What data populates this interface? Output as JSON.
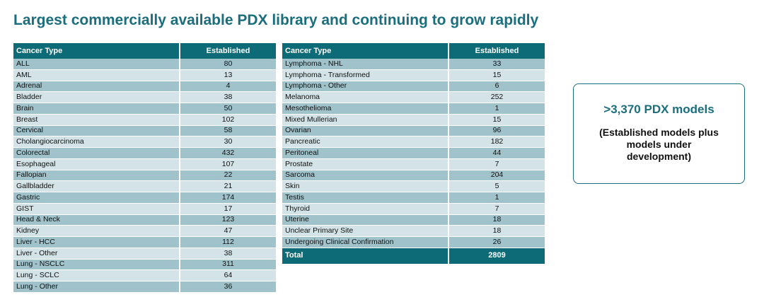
{
  "title": "Largest commercially available PDX library and continuing to grow rapidly",
  "table": {
    "headers": [
      "Cancer Type",
      "Established"
    ],
    "left_rows": [
      [
        "ALL",
        "80"
      ],
      [
        "AML",
        "13"
      ],
      [
        "Adrenal",
        "4"
      ],
      [
        "Bladder",
        "38"
      ],
      [
        "Brain",
        "50"
      ],
      [
        "Breast",
        "102"
      ],
      [
        "Cervical",
        "58"
      ],
      [
        "Cholangiocarcinoma",
        "30"
      ],
      [
        "Colorectal",
        "432"
      ],
      [
        "Esophageal",
        "107"
      ],
      [
        "Fallopian",
        "22"
      ],
      [
        "Gallbladder",
        "21"
      ],
      [
        "Gastric",
        "174"
      ],
      [
        "GIST",
        "17"
      ],
      [
        "Head & Neck",
        "123"
      ],
      [
        "Kidney",
        "47"
      ],
      [
        "Liver - HCC",
        "112"
      ],
      [
        "Liver - Other",
        "38"
      ],
      [
        "Lung - NSCLC",
        "311"
      ],
      [
        "Lung - SCLC",
        "64"
      ],
      [
        "Lung - Other",
        "36"
      ]
    ],
    "right_rows": [
      [
        "Lymphoma - NHL",
        "33"
      ],
      [
        "Lymphoma - Transformed",
        "15"
      ],
      [
        "Lymphoma - Other",
        "6"
      ],
      [
        "Melanoma",
        "252"
      ],
      [
        "Mesothelioma",
        "1"
      ],
      [
        "Mixed Mullerian",
        "15"
      ],
      [
        "Ovarian",
        "96"
      ],
      [
        "Pancreatic",
        "182"
      ],
      [
        "Peritoneal",
        "44"
      ],
      [
        "Prostate",
        "7"
      ],
      [
        "Sarcoma",
        "204"
      ],
      [
        "Skin",
        "5"
      ],
      [
        "Testis",
        "1"
      ],
      [
        "Thyroid",
        "7"
      ],
      [
        "Uterine",
        "18"
      ],
      [
        "Unclear Primary Site",
        "18"
      ],
      [
        "Undergoing Clinical Confirmation",
        "26"
      ]
    ],
    "total": [
      "Total",
      "2809"
    ]
  },
  "callout": {
    "headline": ">3,370 PDX models",
    "body": "(Established models plus models under development)"
  },
  "colors": {
    "title": "#1b6e7e",
    "header_bg": "#0d6b78",
    "row_dark": "#9fc2cb",
    "row_light": "#d3e3e8"
  }
}
